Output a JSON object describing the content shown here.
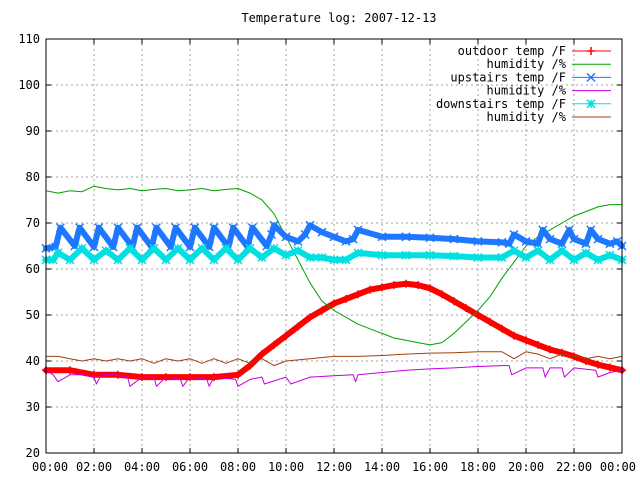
{
  "chart_data": {
    "type": "line",
    "title": "Temperature log: 2007-12-13",
    "xlabel": "",
    "ylabel": "",
    "x_unit": "hours",
    "xlim": [
      0,
      24
    ],
    "ylim": [
      20,
      110
    ],
    "grid": true,
    "legend_position": "top-right",
    "x_ticks": [
      {
        "value": 0,
        "label": "00:00"
      },
      {
        "value": 2,
        "label": "02:00"
      },
      {
        "value": 4,
        "label": "04:00"
      },
      {
        "value": 6,
        "label": "06:00"
      },
      {
        "value": 8,
        "label": "08:00"
      },
      {
        "value": 10,
        "label": "10:00"
      },
      {
        "value": 12,
        "label": "12:00"
      },
      {
        "value": 14,
        "label": "14:00"
      },
      {
        "value": 16,
        "label": "16:00"
      },
      {
        "value": 18,
        "label": "18:00"
      },
      {
        "value": 20,
        "label": "20:00"
      },
      {
        "value": 22,
        "label": "22:00"
      },
      {
        "value": 24,
        "label": "00:00"
      }
    ],
    "y_ticks": [
      {
        "value": 20,
        "label": "20"
      },
      {
        "value": 30,
        "label": "30"
      },
      {
        "value": 40,
        "label": "40"
      },
      {
        "value": 50,
        "label": "50"
      },
      {
        "value": 60,
        "label": "60"
      },
      {
        "value": 70,
        "label": "70"
      },
      {
        "value": 80,
        "label": "80"
      },
      {
        "value": 90,
        "label": "90"
      },
      {
        "value": 100,
        "label": "100"
      },
      {
        "value": 110,
        "label": "110"
      }
    ],
    "series": [
      {
        "name": "outdoor temp /F",
        "color": "#ff0000",
        "marker": "plus",
        "x": [
          0,
          1,
          2,
          3,
          4,
          5,
          6,
          7,
          8,
          8.5,
          9,
          9.5,
          10,
          10.5,
          11,
          11.5,
          12,
          12.5,
          13,
          13.5,
          14,
          14.5,
          15,
          15.5,
          16,
          16.5,
          17,
          17.5,
          18,
          18.5,
          19,
          19.5,
          20,
          20.5,
          21,
          21.5,
          22,
          22.5,
          23,
          23.5,
          24
        ],
        "y": [
          38,
          38,
          37,
          37,
          36.5,
          36.5,
          36.5,
          36.5,
          37,
          39,
          41.5,
          43.5,
          45.5,
          47.5,
          49.5,
          51,
          52.5,
          53.5,
          54.5,
          55.5,
          56,
          56.5,
          56.8,
          56.5,
          55.8,
          54.5,
          53,
          51.5,
          50,
          48.5,
          47,
          45.5,
          44.5,
          43.5,
          42.5,
          41.8,
          41,
          40,
          39.2,
          38.6,
          38
        ]
      },
      {
        "name": "humidity /%",
        "color": "#00a000",
        "marker": "none",
        "x": [
          0,
          0.5,
          1,
          1.5,
          2,
          2.5,
          3,
          3.5,
          4,
          4.5,
          5,
          5.5,
          6,
          6.5,
          7,
          7.5,
          8,
          8.5,
          9,
          9.5,
          10,
          10.5,
          11,
          11.5,
          12,
          12.5,
          13,
          13.5,
          14,
          14.5,
          15,
          15.5,
          16,
          16.5,
          17,
          17.5,
          18,
          18.5,
          19,
          19.5,
          20,
          20.5,
          21,
          21.5,
          22,
          22.5,
          23,
          23.5,
          24
        ],
        "y": [
          77,
          76.5,
          77,
          76.8,
          78,
          77.5,
          77.2,
          77.5,
          77,
          77.3,
          77.5,
          77,
          77.2,
          77.5,
          77,
          77.3,
          77.5,
          76.5,
          75,
          72,
          67,
          62,
          57,
          53,
          51,
          49.5,
          48,
          47,
          46,
          45,
          44.5,
          44,
          43.5,
          44,
          46,
          48.5,
          51,
          54,
          58,
          61.5,
          65,
          67,
          68.5,
          70,
          71.5,
          72.5,
          73.5,
          74,
          74
        ]
      },
      {
        "name": "upstairs temp /F",
        "color": "#1e78ff",
        "marker": "x",
        "x": [
          0,
          0.4,
          0.6,
          1.2,
          1.4,
          2,
          2.2,
          2.8,
          3,
          3.6,
          3.8,
          4.4,
          4.6,
          5.2,
          5.4,
          6,
          6.2,
          6.8,
          7,
          7.6,
          7.8,
          8.4,
          8.6,
          9.2,
          9.4,
          9.5,
          10,
          10.5,
          10.8,
          11,
          11.5,
          12,
          12.5,
          12.8,
          13,
          14,
          15,
          16,
          17,
          18,
          19,
          19.3,
          19.5,
          20,
          20.5,
          20.7,
          21,
          21.5,
          21.8,
          22,
          22.5,
          22.7,
          23,
          23.5,
          23.8,
          24
        ],
        "y": [
          64.5,
          64.8,
          69,
          65,
          69,
          64.8,
          69,
          64.8,
          69,
          64.8,
          69,
          64.8,
          69,
          64.8,
          69,
          64.8,
          69,
          64.8,
          69,
          64.8,
          69,
          64.8,
          69,
          65,
          67.5,
          69.5,
          67,
          66,
          67.5,
          69.5,
          68,
          67,
          66,
          66.5,
          68.5,
          67,
          67,
          66.8,
          66.5,
          66,
          65.8,
          65.5,
          67.5,
          66,
          65.5,
          68.5,
          66.5,
          65.5,
          68.5,
          66.5,
          65.5,
          68.5,
          66.5,
          65.5,
          66,
          65
        ]
      },
      {
        "name": "humidity /%",
        "color": "#c000e0",
        "marker": "none",
        "x": [
          0,
          0.3,
          0.5,
          1,
          1.5,
          2,
          2.1,
          2.3,
          3,
          3.4,
          3.5,
          4,
          4.5,
          4.6,
          5,
          5.6,
          5.7,
          6,
          6.7,
          6.8,
          7,
          7.9,
          8,
          8.5,
          9,
          9.1,
          10,
          10.2,
          11,
          12,
          12.8,
          12.9,
          13,
          14,
          15,
          16,
          17,
          18,
          19,
          19.3,
          19.4,
          20,
          20.7,
          20.8,
          21,
          21.5,
          21.6,
          22,
          22.9,
          23,
          23.5,
          24
        ],
        "y": [
          38,
          37,
          35.5,
          37,
          37,
          36.5,
          35,
          37,
          37,
          36.5,
          34.5,
          36.5,
          36.5,
          34.5,
          36.5,
          36,
          34.5,
          36.5,
          36,
          34.5,
          36.5,
          36,
          34.5,
          36,
          36.5,
          35,
          36.5,
          35,
          36.5,
          36.8,
          37,
          35.5,
          37,
          37.5,
          38,
          38.3,
          38.5,
          38.8,
          39,
          39,
          37,
          38.5,
          38.5,
          36.5,
          38.5,
          38.5,
          36.5,
          38.5,
          38,
          36.5,
          37.5,
          38
        ]
      },
      {
        "name": "downstairs temp /F",
        "color": "#00e0e0",
        "marker": "star",
        "x": [
          0,
          0.3,
          0.5,
          1,
          1.5,
          2,
          2.5,
          3,
          3.5,
          4,
          4.5,
          5,
          5.5,
          6,
          6.5,
          7,
          7.5,
          8,
          8.5,
          9,
          9.5,
          10,
          10.5,
          11,
          11.5,
          12,
          12.5,
          13,
          14,
          15,
          16,
          17,
          18,
          19,
          19.5,
          20,
          20.5,
          21,
          21.5,
          22,
          22.5,
          23,
          23.5,
          24
        ],
        "y": [
          62,
          62,
          63.5,
          62,
          64.5,
          62,
          64,
          62,
          64.5,
          62,
          64.5,
          62,
          64.5,
          62,
          64.5,
          62,
          64.5,
          62,
          64.5,
          62.5,
          64.5,
          63,
          64,
          62.5,
          62.5,
          62,
          62,
          63.5,
          63,
          63,
          63,
          62.8,
          62.5,
          62.5,
          64,
          62.5,
          64,
          62,
          64,
          62,
          63.5,
          62,
          63,
          62
        ]
      },
      {
        "name": "humidity /%",
        "color": "#a0400a",
        "marker": "none",
        "x": [
          0,
          0.5,
          1,
          1.5,
          2,
          2.5,
          3,
          3.5,
          4,
          4.5,
          5,
          5.5,
          6,
          6.5,
          7,
          7.5,
          8,
          8.5,
          9,
          9.5,
          10,
          11,
          12,
          13,
          14,
          15,
          16,
          17,
          18,
          19,
          19.5,
          20,
          20.5,
          21,
          21.5,
          22,
          22.5,
          23,
          23.5,
          24
        ],
        "y": [
          41,
          41,
          40.5,
          40,
          40.5,
          40,
          40.5,
          40,
          40.5,
          39.5,
          40.5,
          40,
          40.5,
          39.5,
          40.5,
          39.5,
          40.5,
          39.5,
          40.5,
          39,
          40,
          40.5,
          41,
          41,
          41.2,
          41.5,
          41.7,
          41.8,
          42,
          42,
          40.5,
          42,
          41.5,
          40.5,
          41.5,
          41,
          40.5,
          41,
          40.5,
          41
        ]
      }
    ]
  }
}
